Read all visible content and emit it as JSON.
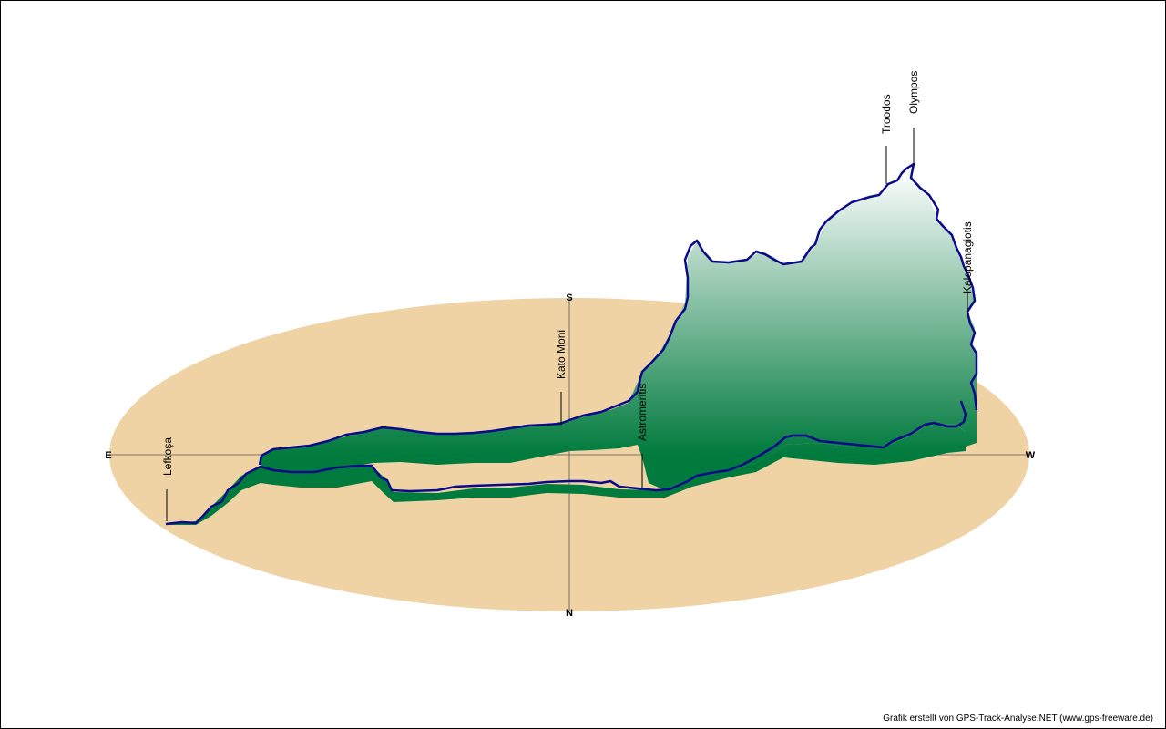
{
  "colors": {
    "ground": "#EFD3A5",
    "track": "#0A0A8A",
    "wall_top": "#FFFFFF",
    "wall_bottom": "#007A3D",
    "axis": "#555555"
  },
  "compass": {
    "north": "N",
    "south": "S",
    "east": "E",
    "west": "W"
  },
  "places": [
    {
      "name": "Lefkoşa"
    },
    {
      "name": "Kato Moni"
    },
    {
      "name": "Astromeritis"
    },
    {
      "name": "Troodos"
    },
    {
      "name": "Olympos"
    },
    {
      "name": "Kalopanagiotis"
    }
  ],
  "credit": "Grafik erstellt von GPS-Track-Analyse.NET (www.gps-freeware.de)"
}
